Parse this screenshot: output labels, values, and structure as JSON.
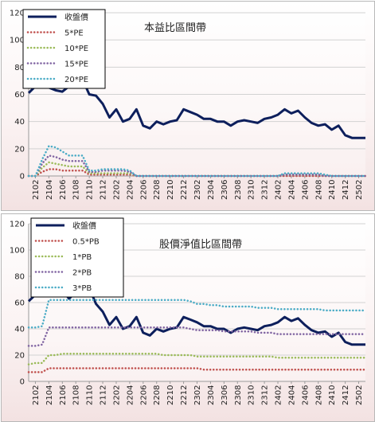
{
  "chart_data": [
    {
      "type": "line",
      "title": "本益比區間帶",
      "ylim": [
        0,
        120
      ],
      "yticks": [
        0,
        20,
        40,
        60,
        80,
        100,
        120
      ],
      "grid": true,
      "legend": "top-left",
      "xticks": [
        "2102",
        "2104",
        "2106",
        "2108",
        "2110",
        "2112",
        "2202",
        "2204",
        "2206",
        "2208",
        "2210",
        "2212",
        "2302",
        "2304",
        "2306",
        "2308",
        "2310",
        "2312",
        "2402",
        "2404",
        "2406",
        "2408",
        "2410",
        "2412",
        "2502"
      ],
      "x": [
        "2101",
        "2102",
        "2103",
        "2104",
        "2105",
        "2106",
        "2107",
        "2108",
        "2109",
        "2110",
        "2111",
        "2112",
        "2201",
        "2202",
        "2203",
        "2204",
        "2205",
        "2206",
        "2207",
        "2208",
        "2209",
        "2210",
        "2211",
        "2212",
        "2301",
        "2302",
        "2303",
        "2304",
        "2305",
        "2306",
        "2307",
        "2308",
        "2309",
        "2310",
        "2311",
        "2312",
        "2401",
        "2402",
        "2403",
        "2404",
        "2405",
        "2406",
        "2407",
        "2408",
        "2409",
        "2410",
        "2411",
        "2412",
        "2501",
        "2502",
        "2503"
      ],
      "series": [
        {
          "name": "收盤價",
          "color": "#0d1f5c",
          "style": "solid",
          "values": [
            61,
            66,
            73,
            65,
            63,
            62,
            66,
            71,
            71,
            60,
            59,
            53,
            43,
            49,
            40,
            42,
            49,
            37,
            35,
            40,
            38,
            40,
            41,
            49,
            47,
            45,
            42,
            42,
            40,
            40,
            37,
            40,
            41,
            40,
            39,
            42,
            43,
            45,
            49,
            46,
            48,
            43,
            39,
            37,
            38,
            34,
            37,
            30,
            28,
            28,
            28
          ]
        },
        {
          "name": "5*PE",
          "color": "#c0504d",
          "style": "dotted",
          "values": [
            0,
            0,
            3,
            5,
            5,
            4,
            4,
            4,
            4,
            1,
            1,
            1,
            1,
            1,
            1,
            1,
            0,
            0,
            0,
            0,
            0,
            0,
            0,
            0,
            0,
            0,
            0,
            0,
            0,
            0,
            0,
            0,
            0,
            0,
            0,
            0,
            0,
            0,
            0,
            0,
            0,
            0,
            0,
            0,
            0,
            0,
            0,
            0,
            0,
            0,
            0
          ]
        },
        {
          "name": "10*PE",
          "color": "#9bbb59",
          "style": "dotted",
          "values": [
            0,
            0,
            6,
            10,
            9,
            8,
            7,
            7,
            7,
            2,
            2,
            2,
            2,
            2,
            2,
            2,
            0,
            0,
            0,
            0,
            0,
            0,
            0,
            0,
            0,
            0,
            0,
            0,
            0,
            0,
            0,
            0,
            0,
            0,
            0,
            0,
            0,
            0,
            1,
            1,
            1,
            1,
            1,
            1,
            0,
            0,
            0,
            0,
            0,
            0,
            0
          ]
        },
        {
          "name": "15*PE",
          "color": "#8064a2",
          "style": "dotted",
          "values": [
            0,
            0,
            9,
            15,
            14,
            12,
            11,
            11,
            11,
            3,
            3,
            4,
            4,
            4,
            4,
            3,
            0,
            0,
            0,
            0,
            0,
            0,
            0,
            0,
            0,
            0,
            0,
            0,
            0,
            0,
            0,
            0,
            0,
            0,
            0,
            0,
            0,
            0,
            1,
            1,
            1,
            1,
            1,
            1,
            0,
            0,
            0,
            0,
            0,
            0,
            0
          ]
        },
        {
          "name": "20*PE",
          "color": "#4bacc6",
          "style": "dotted",
          "values": [
            0,
            0,
            12,
            22,
            21,
            18,
            15,
            15,
            15,
            4,
            4,
            5,
            5,
            5,
            5,
            4,
            0,
            0,
            0,
            0,
            0,
            0,
            0,
            0,
            0,
            0,
            0,
            0,
            0,
            0,
            0,
            0,
            0,
            0,
            0,
            0,
            0,
            0,
            2,
            2,
            2,
            2,
            2,
            2,
            1,
            0,
            0,
            0,
            0,
            0,
            0
          ]
        }
      ]
    },
    {
      "type": "line",
      "title": "股價淨值比區間帶",
      "ylim": [
        0,
        120
      ],
      "yticks": [
        0,
        20,
        40,
        60,
        80,
        100,
        120
      ],
      "grid": true,
      "legend": "top-left",
      "xticks": [
        "2102",
        "2104",
        "2106",
        "2108",
        "2110",
        "2112",
        "2202",
        "2204",
        "2206",
        "2208",
        "2210",
        "2212",
        "2302",
        "2304",
        "2306",
        "2308",
        "2310",
        "2312",
        "2402",
        "2404",
        "2406",
        "2408",
        "2410",
        "2412",
        "2502"
      ],
      "x": [
        "2101",
        "2102",
        "2103",
        "2104",
        "2105",
        "2106",
        "2107",
        "2108",
        "2109",
        "2110",
        "2111",
        "2112",
        "2201",
        "2202",
        "2203",
        "2204",
        "2205",
        "2206",
        "2207",
        "2208",
        "2209",
        "2210",
        "2211",
        "2212",
        "2301",
        "2302",
        "2303",
        "2304",
        "2305",
        "2306",
        "2307",
        "2308",
        "2309",
        "2310",
        "2311",
        "2312",
        "2401",
        "2402",
        "2403",
        "2404",
        "2405",
        "2406",
        "2407",
        "2408",
        "2409",
        "2410",
        "2411",
        "2412",
        "2501",
        "2502",
        "2503"
      ],
      "series": [
        {
          "name": "收盤價",
          "color": "#0d1f5c",
          "style": "solid",
          "values": [
            61,
            66,
            73,
            65,
            73,
            69,
            63,
            68,
            77,
            71,
            59,
            53,
            43,
            49,
            40,
            42,
            49,
            37,
            35,
            40,
            38,
            40,
            41,
            49,
            47,
            45,
            42,
            42,
            40,
            40,
            37,
            40,
            41,
            40,
            39,
            42,
            43,
            45,
            49,
            46,
            48,
            43,
            39,
            37,
            38,
            34,
            37,
            30,
            28,
            28,
            28
          ]
        },
        {
          "name": "0.5*PB",
          "color": "#c0504d",
          "style": "dotted",
          "values": [
            7,
            7,
            7,
            10,
            10,
            10,
            10,
            10,
            10,
            10,
            10,
            10,
            10,
            10,
            10,
            10,
            10,
            10,
            10,
            10,
            10,
            10,
            10,
            10,
            10,
            10,
            9,
            9,
            9,
            9,
            9,
            9,
            9,
            9,
            9,
            9,
            9,
            9,
            9,
            9,
            9,
            9,
            9,
            9,
            9,
            9,
            9,
            9,
            9,
            9,
            9
          ]
        },
        {
          "name": "1*PB",
          "color": "#9bbb59",
          "style": "dotted",
          "values": [
            13,
            14,
            14,
            20,
            20,
            21,
            21,
            21,
            21,
            21,
            21,
            21,
            21,
            21,
            21,
            21,
            21,
            21,
            21,
            21,
            20,
            20,
            20,
            20,
            20,
            19,
            19,
            19,
            19,
            19,
            19,
            19,
            19,
            19,
            19,
            19,
            19,
            18,
            18,
            18,
            18,
            18,
            18,
            18,
            18,
            18,
            18,
            18,
            18,
            18,
            18
          ]
        },
        {
          "name": "2*PB",
          "color": "#8064a2",
          "style": "dotted",
          "values": [
            27,
            27,
            28,
            41,
            41,
            41,
            41,
            41,
            41,
            41,
            41,
            41,
            41,
            41,
            41,
            41,
            41,
            41,
            41,
            41,
            41,
            41,
            41,
            41,
            40,
            39,
            39,
            39,
            39,
            38,
            38,
            38,
            38,
            38,
            37,
            37,
            37,
            36,
            36,
            36,
            36,
            36,
            36,
            36,
            36,
            36,
            36,
            36,
            36,
            36,
            36
          ]
        },
        {
          "name": "3*PB",
          "color": "#4bacc6",
          "style": "dotted",
          "values": [
            41,
            41,
            42,
            62,
            62,
            62,
            62,
            62,
            62,
            62,
            62,
            62,
            62,
            62,
            62,
            62,
            62,
            62,
            62,
            62,
            62,
            62,
            62,
            62,
            61,
            59,
            59,
            58,
            58,
            57,
            57,
            57,
            57,
            57,
            56,
            56,
            56,
            55,
            55,
            55,
            55,
            55,
            55,
            55,
            54,
            54,
            54,
            54,
            54,
            54,
            54
          ]
        }
      ]
    }
  ]
}
